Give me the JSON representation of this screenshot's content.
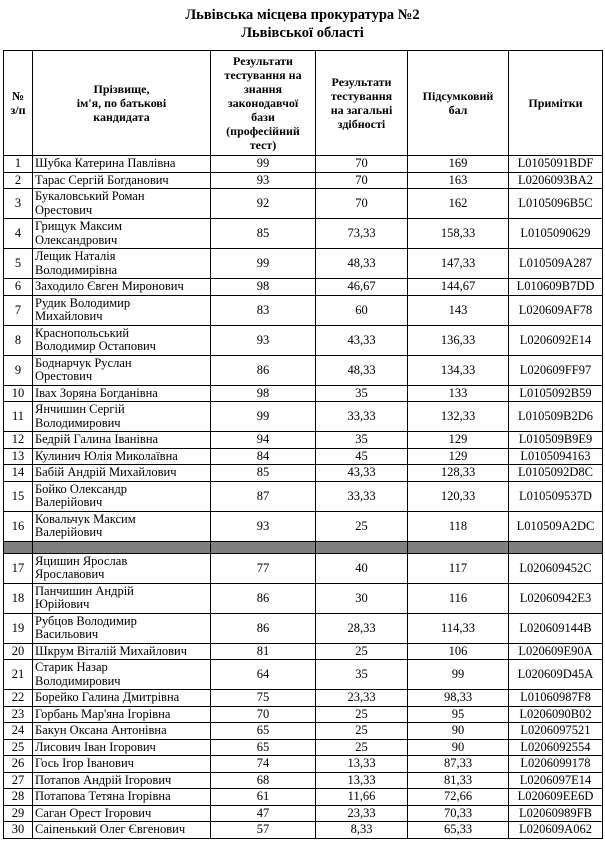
{
  "title": {
    "line1": "Львівська місцева прокуратура №2",
    "line2": "Львівської області"
  },
  "colors": {
    "separator_row_gray": "#7f7f7f",
    "border_black": "#000000",
    "text_black": "#000000",
    "page_background": "#ffffff"
  },
  "table": {
    "headers": {
      "num": "№\nз/п",
      "name": "Прізвище,\nім'я, по батькові\nкандидата",
      "prof_test": "Результати\nтестування на\nзнання\nзаконодавчої\nбази\n(професійний\nтест)",
      "general_test": "Результати\nтестування\nна загальні\nздібності",
      "total": "Підсумковий\nбал",
      "notes": "Примітки"
    },
    "rows": [
      {
        "num": "1",
        "name": "Шубка Катерина Павлівна",
        "prof": "99",
        "general": "70",
        "total": "169",
        "note": "L0105091BDF"
      },
      {
        "num": "2",
        "name": "Тарас Сергій Богданович",
        "prof": "93",
        "general": "70",
        "total": "163",
        "note": "L0206093BA2"
      },
      {
        "num": "3",
        "name": "Букаловський Роман\nОрестович",
        "prof": "92",
        "general": "70",
        "total": "162",
        "note": "L0105096B5C"
      },
      {
        "num": "4",
        "name": "Грищук Максим\nОлександрович",
        "prof": "85",
        "general": "73,33",
        "total": "158,33",
        "note": "L0105090629"
      },
      {
        "num": "5",
        "name": "Лещик Наталія\nВолодимирівна",
        "prof": "99",
        "general": "48,33",
        "total": "147,33",
        "note": "L010509A287"
      },
      {
        "num": "6",
        "name": "Заходило Євген Миронович",
        "prof": "98",
        "general": "46,67",
        "total": "144,67",
        "note": "L010609B7DD"
      },
      {
        "num": "7",
        "name": "Рудик Володимир\nМихайлович",
        "prof": "83",
        "general": "60",
        "total": "143",
        "note": "L020609AF78"
      },
      {
        "num": "8",
        "name": "Краснопольський\nВолодимир Остапович",
        "prof": "93",
        "general": "43,33",
        "total": "136,33",
        "note": "L0206092E14"
      },
      {
        "num": "9",
        "name": "Боднарчук Руслан\nОрестович",
        "prof": "86",
        "general": "48,33",
        "total": "134,33",
        "note": "L020609FF97"
      },
      {
        "num": "10",
        "name": "Івах Зоряна Богданівна",
        "prof": "98",
        "general": "35",
        "total": "133",
        "note": "L0105092B59"
      },
      {
        "num": "11",
        "name": "Янчишин Сергій\nВолодимирович",
        "prof": "99",
        "general": "33,33",
        "total": "132,33",
        "note": "L010509B2D6"
      },
      {
        "num": "12",
        "name": "Бедрій Галина Іванівна",
        "prof": "94",
        "general": "35",
        "total": "129",
        "note": "L010509B9E9"
      },
      {
        "num": "13",
        "name": "Кулинич Юлія Миколаївна",
        "prof": "84",
        "general": "45",
        "total": "129",
        "note": "L0105094163"
      },
      {
        "num": "14",
        "name": "Бабій Андрій Михайлович",
        "prof": "85",
        "general": "43,33",
        "total": "128,33",
        "note": "L0105092D8C"
      },
      {
        "num": "15",
        "name": "Бойко Олександр\nВалерійович",
        "prof": "87",
        "general": "33,33",
        "total": "120,33",
        "note": "L010509537D"
      },
      {
        "num": "16",
        "name": "Ковальчук Максим\nВалерійович",
        "prof": "93",
        "general": "25",
        "total": "118",
        "note": "L010509A2DC"
      },
      {
        "separator": true
      },
      {
        "num": "17",
        "name": "Яцишин Ярослав\nЯрославович",
        "prof": "77",
        "general": "40",
        "total": "117",
        "note": "L020609452C"
      },
      {
        "num": "18",
        "name": "Панчишин Андрій\nЮрійович",
        "prof": "86",
        "general": "30",
        "total": "116",
        "note": "L02060942E3"
      },
      {
        "num": "19",
        "name": "Рубцов Володимир\nВасильович",
        "prof": "86",
        "general": "28,33",
        "total": "114,33",
        "note": "L020609144B"
      },
      {
        "num": "20",
        "name": "Шкрум Віталій Михайлович",
        "prof": "81",
        "general": "25",
        "total": "106",
        "note": "L020609E90A"
      },
      {
        "num": "21",
        "name": "Старик Назар\nВолодимирович",
        "prof": "64",
        "general": "35",
        "total": "99",
        "note": "L020609D45A"
      },
      {
        "num": "22",
        "name": "Борейко Галина Дмитрівна",
        "prof": "75",
        "general": "23,33",
        "total": "98,33",
        "note": "L01060987F8"
      },
      {
        "num": "23",
        "name": "Горбань Мар'яна Ігорівна",
        "prof": "70",
        "general": "25",
        "total": "95",
        "note": "L0206090B02"
      },
      {
        "num": "24",
        "name": "Бакун Оксана Антонівна",
        "prof": "65",
        "general": "25",
        "total": "90",
        "note": "L0206097521"
      },
      {
        "num": "25",
        "name": "Лисович Іван Ігорович",
        "prof": "65",
        "general": "25",
        "total": "90",
        "note": "L0206092554"
      },
      {
        "num": "26",
        "name": "Гось Ігор Іванович",
        "prof": "74",
        "general": "13,33",
        "total": "87,33",
        "note": "L0206099178"
      },
      {
        "num": "27",
        "name": "Потапов Андрій Ігорович",
        "prof": "68",
        "general": "13,33",
        "total": "81,33",
        "note": "L0206097E14"
      },
      {
        "num": "28",
        "name": "Потапова Тетяна Ігорівна",
        "prof": "61",
        "general": "11,66",
        "total": "72,66",
        "note": "L020609EE6D"
      },
      {
        "num": "29",
        "name": "Саган Орест Ігорович",
        "prof": "47",
        "general": "23,33",
        "total": "70,33",
        "note": "L02060989FB"
      },
      {
        "num": "30",
        "name": "Саіпенький Олег Євгенович",
        "prof": "57",
        "general": "8,33",
        "total": "65,33",
        "note": "L020609A062"
      }
    ]
  }
}
